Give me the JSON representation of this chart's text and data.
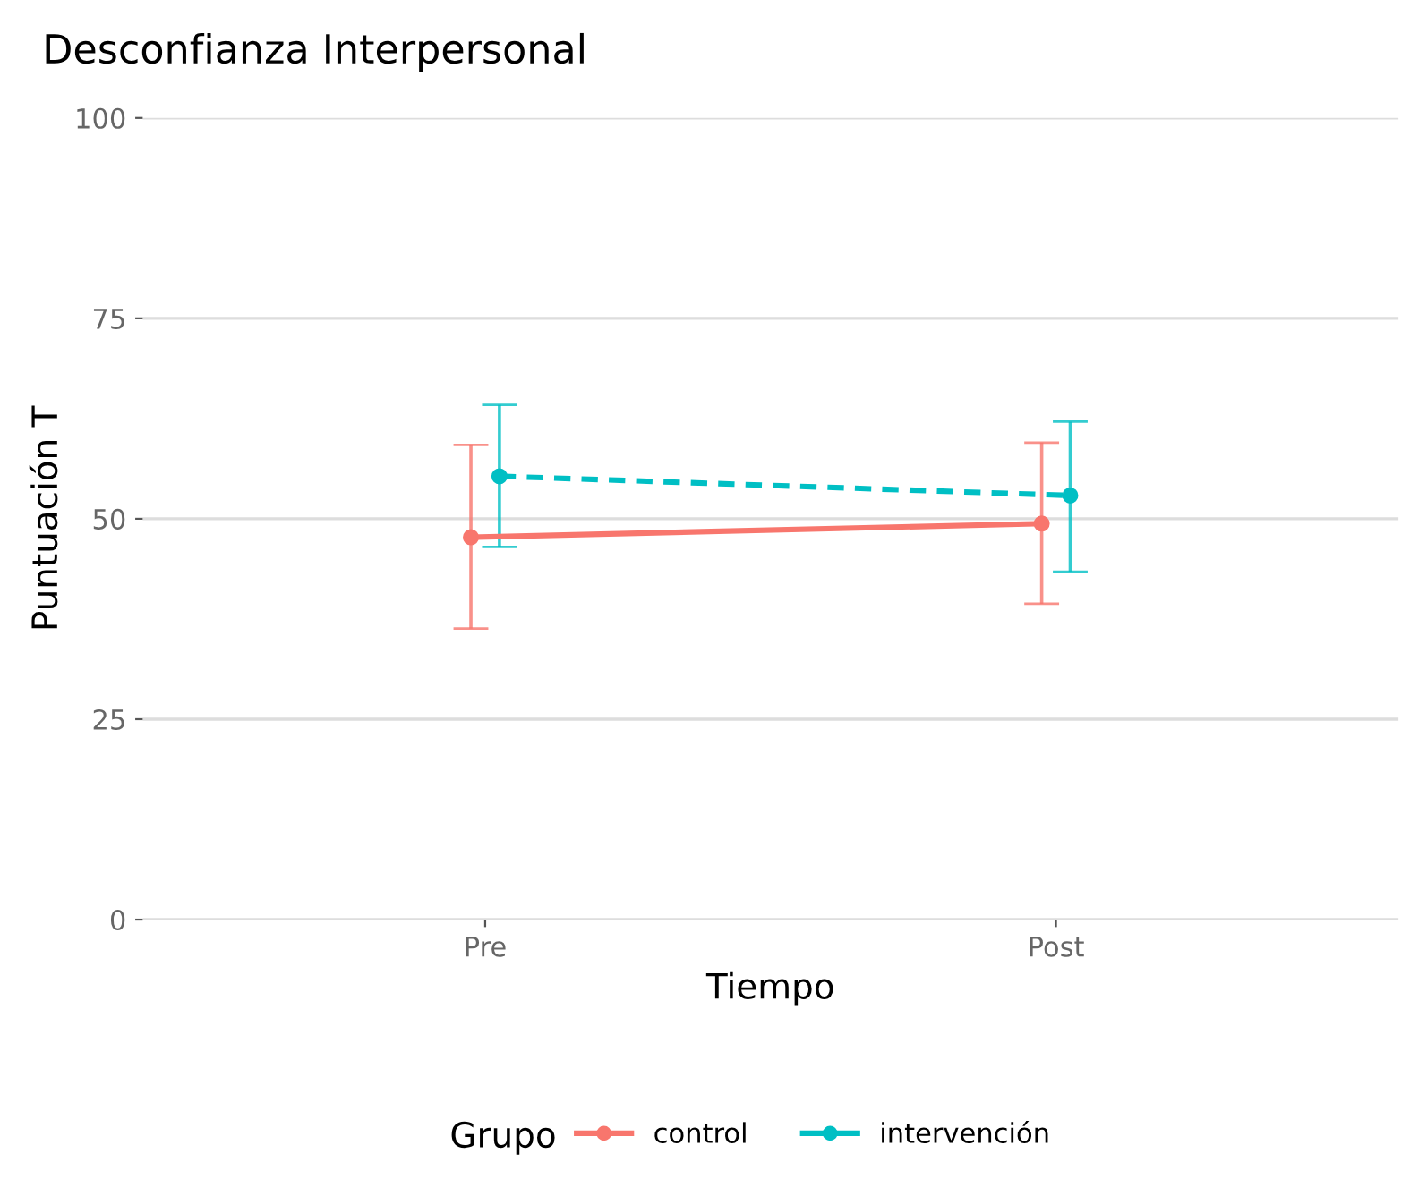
{
  "chart_data": {
    "type": "line",
    "title": "Desconfianza Interpersonal",
    "xlabel": "Tiempo",
    "ylabel": "Puntuación T",
    "legend_title": "Grupo",
    "categories": [
      "Pre",
      "Post"
    ],
    "series": [
      {
        "name": "control",
        "color": "#f8766d",
        "values": [
          47.7,
          49.4
        ],
        "errors": [
          [
            36.3,
            59.2
          ],
          [
            39.4,
            59.5
          ]
        ],
        "line_style": "solid"
      },
      {
        "name": "intervención",
        "color": "#00bfc4",
        "values": [
          55.3,
          52.9
        ],
        "errors": [
          [
            46.5,
            64.2
          ],
          [
            43.4,
            62.1
          ]
        ],
        "line_style": "dashed"
      }
    ],
    "ylim": [
      0,
      100
    ],
    "yticks": [
      0,
      25,
      50,
      75,
      100
    ],
    "grid": "y",
    "legend": "bottom",
    "marker": "circle"
  }
}
